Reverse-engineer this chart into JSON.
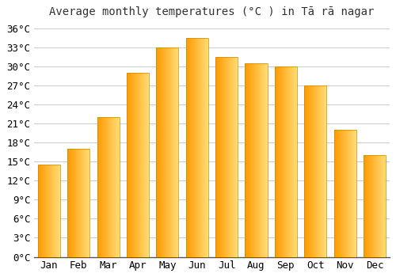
{
  "title": "Average monthly temperatures (°C ) in Tā rā nagar",
  "months": [
    "Jan",
    "Feb",
    "Mar",
    "Apr",
    "May",
    "Jun",
    "Jul",
    "Aug",
    "Sep",
    "Oct",
    "Nov",
    "Dec"
  ],
  "temperatures": [
    14.5,
    17.0,
    22.0,
    29.0,
    33.0,
    34.5,
    31.5,
    30.5,
    30.0,
    27.0,
    20.0,
    16.0
  ],
  "ylim": [
    0,
    37
  ],
  "yticks": [
    0,
    3,
    6,
    9,
    12,
    15,
    18,
    21,
    24,
    27,
    30,
    33,
    36
  ],
  "ytick_labels": [
    "0°C",
    "3°C",
    "6°C",
    "9°C",
    "12°C",
    "15°C",
    "18°C",
    "21°C",
    "24°C",
    "27°C",
    "30°C",
    "33°C",
    "36°C"
  ],
  "bar_color_main": "#FFA500",
  "bar_color_light": "#FFD580",
  "bar_edge_color": "#CC8800",
  "background_color": "#ffffff",
  "plot_bg_color": "#ffffff",
  "grid_color": "#cccccc",
  "title_fontsize": 10,
  "tick_fontsize": 9,
  "bar_width": 0.75
}
